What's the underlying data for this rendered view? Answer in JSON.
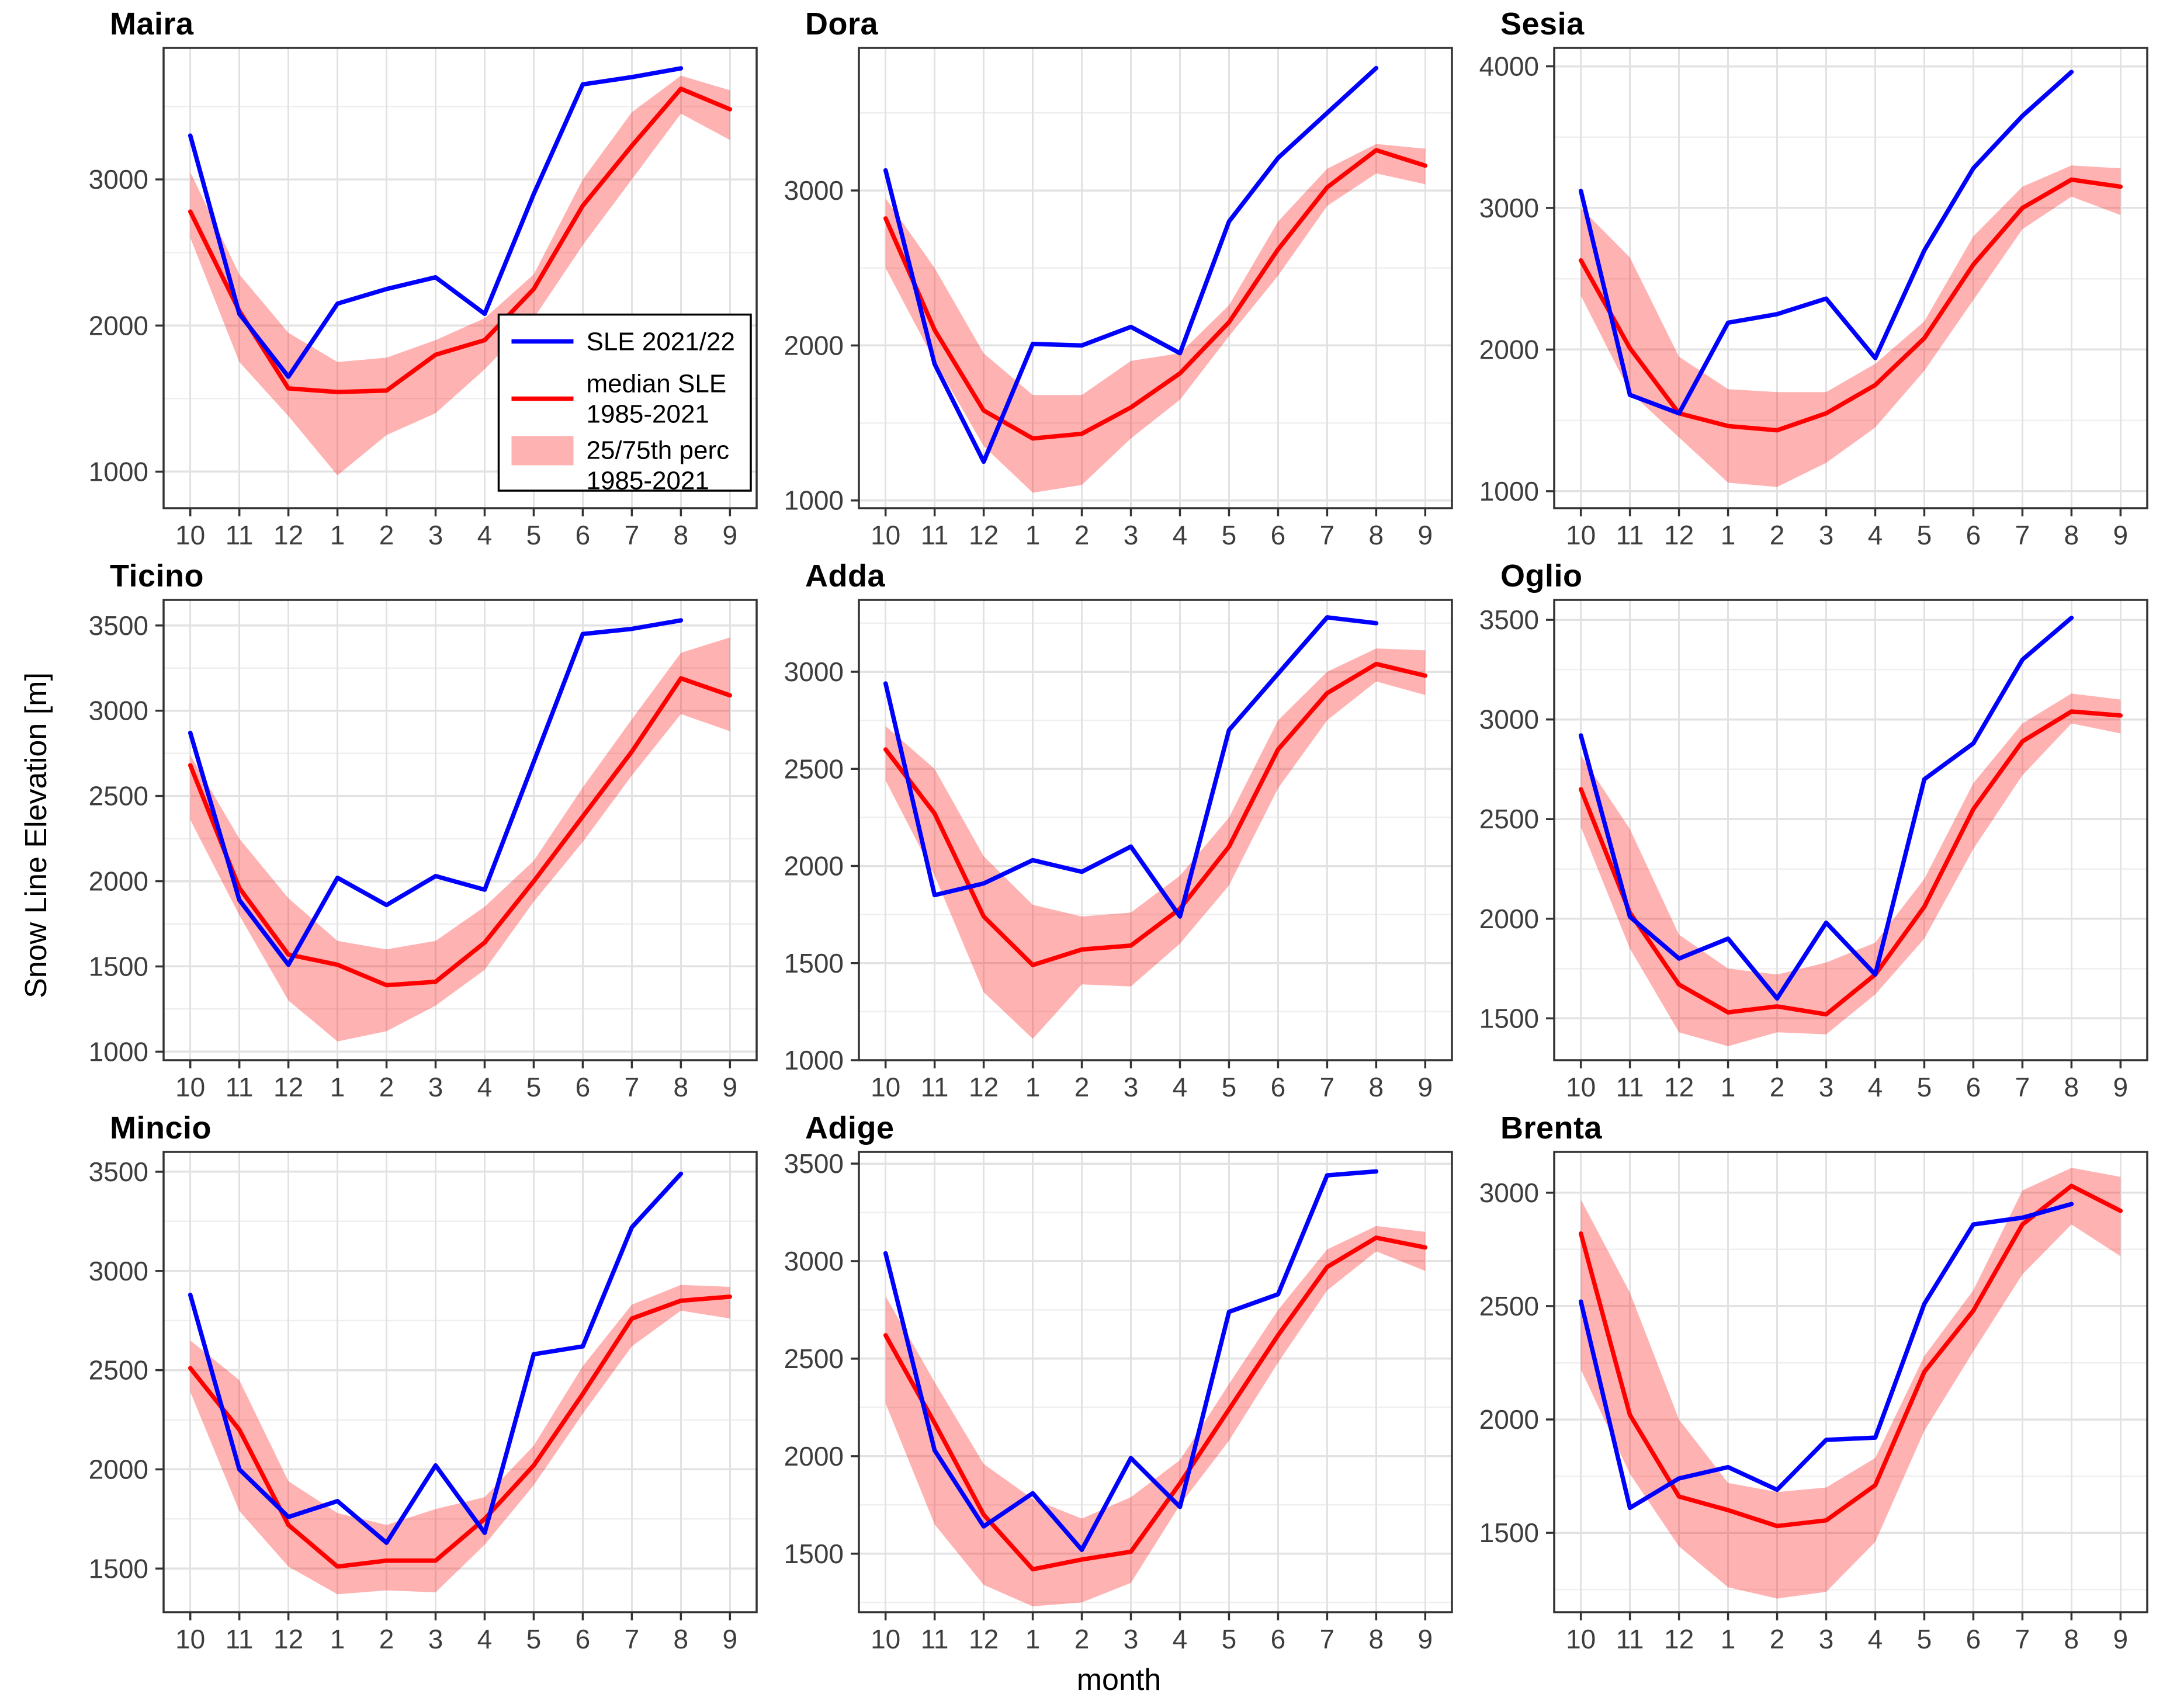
{
  "figure": {
    "y_axis_label": "Snow Line Elevation [m]",
    "x_axis_label": "month",
    "month_labels": [
      "10",
      "11",
      "12",
      "1",
      "2",
      "3",
      "4",
      "5",
      "6",
      "7",
      "8",
      "9"
    ]
  },
  "style": {
    "current_line_color": "#0000FF",
    "median_line_color": "#FF0000",
    "band_fill": "rgba(255,0,0,0.30)",
    "grid_major_color": "#E2E2E2",
    "grid_minor_color": "#EFEFEF",
    "panel_border_color": "#333333",
    "tick_mark_color": "#333333",
    "tick_label_color": "#3D3D3D",
    "background": "#FFFFFF"
  },
  "legend": {
    "location": "inside Maira panel, lower right",
    "entries": [
      {
        "key": "line",
        "color": "#0000FF",
        "label": "SLE 2021/22",
        "label_lines": [
          "SLE 2021/22"
        ]
      },
      {
        "key": "line",
        "color": "#FF0000",
        "label": "median SLE 1985-2021",
        "label_lines": [
          "median SLE",
          "1985-2021"
        ]
      },
      {
        "key": "band",
        "color": "rgba(255,0,0,0.30)",
        "label": "25/75th perc 1985-2021",
        "label_lines": [
          "25/75th perc",
          "1985-2021"
        ]
      }
    ]
  },
  "chart_data": [
    {
      "type": "line",
      "title": "Maira",
      "show_legend": true,
      "x": [
        10,
        11,
        12,
        1,
        2,
        3,
        4,
        5,
        6,
        7,
        8,
        9
      ],
      "ylim": [
        750,
        3900
      ],
      "yticks": [
        1000,
        2000,
        3000
      ],
      "series": [
        {
          "name": "SLE 2021/22",
          "color": "#0000FF",
          "values": [
            3300,
            2080,
            1650,
            2150,
            2250,
            2330,
            2080,
            2900,
            3650,
            3700,
            3760,
            null
          ]
        },
        {
          "name": "median SLE 1985-2021",
          "color": "#FF0000",
          "values": [
            2780,
            2100,
            1570,
            1545,
            1555,
            1800,
            1900,
            2250,
            2820,
            3230,
            3620,
            3480
          ]
        }
      ],
      "band": {
        "name": "25/75th perc 1985-2021",
        "lower": [
          2600,
          1750,
          1380,
          975,
          1250,
          1400,
          1700,
          2050,
          2550,
          3000,
          3450,
          3270
        ],
        "upper": [
          3050,
          2350,
          1950,
          1750,
          1780,
          1900,
          2050,
          2350,
          3000,
          3460,
          3710,
          3610
        ]
      }
    },
    {
      "type": "line",
      "title": "Dora",
      "show_legend": false,
      "x": [
        10,
        11,
        12,
        1,
        2,
        3,
        4,
        5,
        6,
        7,
        8,
        9
      ],
      "ylim": [
        950,
        3920
      ],
      "yticks": [
        1000,
        2000,
        3000
      ],
      "series": [
        {
          "name": "SLE 2021/22",
          "color": "#0000FF",
          "values": [
            3130,
            1880,
            1250,
            2010,
            2000,
            2120,
            1950,
            2800,
            3210,
            3500,
            3790,
            null
          ]
        },
        {
          "name": "median SLE 1985-2021",
          "color": "#FF0000",
          "values": [
            2820,
            2100,
            1580,
            1400,
            1430,
            1600,
            1820,
            2150,
            2620,
            3020,
            3260,
            3160
          ]
        }
      ],
      "band": {
        "name": "25/75th perc 1985-2021",
        "lower": [
          2500,
          1900,
          1350,
          1050,
          1100,
          1400,
          1650,
          2060,
          2450,
          2900,
          3110,
          3040
        ],
        "upper": [
          2950,
          2500,
          1950,
          1680,
          1680,
          1900,
          1950,
          2260,
          2800,
          3140,
          3300,
          3270
        ]
      }
    },
    {
      "type": "line",
      "title": "Sesia",
      "show_legend": false,
      "x": [
        10,
        11,
        12,
        1,
        2,
        3,
        4,
        5,
        6,
        7,
        8,
        9
      ],
      "ylim": [
        880,
        4130
      ],
      "yticks": [
        1000,
        2000,
        3000,
        4000
      ],
      "series": [
        {
          "name": "SLE 2021/22",
          "color": "#0000FF",
          "values": [
            3120,
            1680,
            1550,
            2190,
            2250,
            2360,
            1940,
            2700,
            3280,
            3650,
            3960,
            null
          ]
        },
        {
          "name": "median SLE 1985-2021",
          "color": "#FF0000",
          "values": [
            2630,
            2010,
            1550,
            1460,
            1430,
            1550,
            1750,
            2080,
            2600,
            3000,
            3200,
            3150
          ]
        }
      ],
      "band": {
        "name": "25/75th perc 1985-2021",
        "lower": [
          2380,
          1700,
          1380,
          1060,
          1030,
          1200,
          1450,
          1850,
          2350,
          2850,
          3080,
          2950
        ],
        "upper": [
          3000,
          2650,
          1950,
          1720,
          1700,
          1700,
          1900,
          2200,
          2800,
          3150,
          3300,
          3280
        ]
      }
    },
    {
      "type": "line",
      "title": "Ticino",
      "show_legend": false,
      "x": [
        10,
        11,
        12,
        1,
        2,
        3,
        4,
        5,
        6,
        7,
        8,
        9
      ],
      "ylim": [
        950,
        3650
      ],
      "yticks": [
        1000,
        1500,
        2000,
        2500,
        3000,
        3500
      ],
      "series": [
        {
          "name": "SLE 2021/22",
          "color": "#0000FF",
          "values": [
            2870,
            1890,
            1510,
            2020,
            1860,
            2030,
            1950,
            2700,
            3450,
            3480,
            3530,
            null
          ]
        },
        {
          "name": "median SLE 1985-2021",
          "color": "#FF0000",
          "values": [
            2680,
            1960,
            1570,
            1510,
            1390,
            1410,
            1640,
            2000,
            2380,
            2760,
            3190,
            3090
          ]
        }
      ],
      "band": {
        "name": "25/75th perc 1985-2021",
        "lower": [
          2360,
          1800,
          1300,
          1060,
          1120,
          1270,
          1480,
          1880,
          2230,
          2620,
          2980,
          2880
        ],
        "upper": [
          2740,
          2250,
          1900,
          1650,
          1600,
          1650,
          1850,
          2120,
          2550,
          2950,
          3340,
          3430
        ]
      }
    },
    {
      "type": "line",
      "title": "Adda",
      "show_legend": false,
      "x": [
        10,
        11,
        12,
        1,
        2,
        3,
        4,
        5,
        6,
        7,
        8,
        9
      ],
      "ylim": [
        1000,
        3370
      ],
      "yticks": [
        1000,
        1500,
        2000,
        2500,
        3000
      ],
      "series": [
        {
          "name": "SLE 2021/22",
          "color": "#0000FF",
          "values": [
            2940,
            1850,
            1910,
            2030,
            1970,
            2100,
            1740,
            2700,
            2990,
            3280,
            3250,
            null
          ]
        },
        {
          "name": "median SLE 1985-2021",
          "color": "#FF0000",
          "values": [
            2600,
            2270,
            1740,
            1490,
            1570,
            1590,
            1780,
            2100,
            2600,
            2890,
            3040,
            2980
          ]
        }
      ],
      "band": {
        "name": "25/75th perc 1985-2021",
        "lower": [
          2440,
          1950,
          1350,
          1110,
          1390,
          1380,
          1600,
          1900,
          2400,
          2750,
          2950,
          2880
        ],
        "upper": [
          2720,
          2500,
          2050,
          1800,
          1740,
          1760,
          1950,
          2250,
          2750,
          3000,
          3120,
          3110
        ]
      }
    },
    {
      "type": "line",
      "title": "Oglio",
      "show_legend": false,
      "x": [
        10,
        11,
        12,
        1,
        2,
        3,
        4,
        5,
        6,
        7,
        8,
        9
      ],
      "ylim": [
        1290,
        3600
      ],
      "yticks": [
        1500,
        2000,
        2500,
        3000,
        3500
      ],
      "series": [
        {
          "name": "SLE 2021/22",
          "color": "#0000FF",
          "values": [
            2920,
            2010,
            1800,
            1900,
            1600,
            1980,
            1720,
            2700,
            2880,
            3300,
            3510,
            null
          ]
        },
        {
          "name": "median SLE 1985-2021",
          "color": "#FF0000",
          "values": [
            2650,
            2030,
            1670,
            1530,
            1560,
            1520,
            1720,
            2060,
            2550,
            2890,
            3040,
            3020
          ]
        }
      ],
      "band": {
        "name": "25/75th perc 1985-2021",
        "lower": [
          2460,
          1850,
          1430,
          1360,
          1430,
          1420,
          1620,
          1900,
          2350,
          2720,
          2980,
          2930
        ],
        "upper": [
          2820,
          2450,
          1920,
          1750,
          1720,
          1780,
          1880,
          2200,
          2680,
          2980,
          3130,
          3100
        ]
      }
    },
    {
      "type": "line",
      "title": "Mincio",
      "show_legend": false,
      "x": [
        10,
        11,
        12,
        1,
        2,
        3,
        4,
        5,
        6,
        7,
        8,
        9
      ],
      "ylim": [
        1280,
        3600
      ],
      "yticks": [
        1500,
        2000,
        2500,
        3000,
        3500
      ],
      "series": [
        {
          "name": "SLE 2021/22",
          "color": "#0000FF",
          "values": [
            2880,
            2000,
            1760,
            1840,
            1630,
            2020,
            1680,
            2580,
            2620,
            3220,
            3490,
            null
          ]
        },
        {
          "name": "median SLE 1985-2021",
          "color": "#FF0000",
          "values": [
            2510,
            2200,
            1720,
            1510,
            1540,
            1540,
            1750,
            2020,
            2380,
            2760,
            2850,
            2870
          ]
        }
      ],
      "band": {
        "name": "25/75th perc 1985-2021",
        "lower": [
          2390,
          1790,
          1510,
          1370,
          1390,
          1380,
          1620,
          1920,
          2280,
          2620,
          2800,
          2760
        ],
        "upper": [
          2650,
          2450,
          1940,
          1780,
          1720,
          1800,
          1860,
          2120,
          2520,
          2830,
          2930,
          2920
        ]
      }
    },
    {
      "type": "line",
      "title": "Adige",
      "show_legend": false,
      "x": [
        10,
        11,
        12,
        1,
        2,
        3,
        4,
        5,
        6,
        7,
        8,
        9
      ],
      "ylim": [
        1200,
        3560
      ],
      "yticks": [
        1500,
        2000,
        2500,
        3000,
        3500
      ],
      "series": [
        {
          "name": "SLE 2021/22",
          "color": "#0000FF",
          "values": [
            3040,
            2030,
            1640,
            1810,
            1520,
            1990,
            1740,
            2740,
            2830,
            3440,
            3460,
            null
          ]
        },
        {
          "name": "median SLE 1985-2021",
          "color": "#FF0000",
          "values": [
            2620,
            2170,
            1700,
            1420,
            1470,
            1510,
            1860,
            2240,
            2620,
            2970,
            3120,
            3070
          ]
        }
      ],
      "band": {
        "name": "25/75th perc 1985-2021",
        "lower": [
          2270,
          1650,
          1340,
          1230,
          1250,
          1350,
          1750,
          2080,
          2480,
          2850,
          3050,
          2950
        ],
        "upper": [
          2820,
          2380,
          1960,
          1780,
          1680,
          1790,
          1980,
          2370,
          2750,
          3060,
          3180,
          3150
        ]
      }
    },
    {
      "type": "line",
      "title": "Brenta",
      "show_legend": false,
      "x": [
        10,
        11,
        12,
        1,
        2,
        3,
        4,
        5,
        6,
        7,
        8,
        9
      ],
      "ylim": [
        1150,
        3180
      ],
      "yticks": [
        1500,
        2000,
        2500,
        3000
      ],
      "series": [
        {
          "name": "SLE 2021/22",
          "color": "#0000FF",
          "values": [
            2520,
            1610,
            1740,
            1790,
            1690,
            1910,
            1920,
            2510,
            2860,
            2890,
            2950,
            null
          ]
        },
        {
          "name": "median SLE 1985-2021",
          "color": "#FF0000",
          "values": [
            2820,
            2020,
            1660,
            1600,
            1530,
            1555,
            1710,
            2210,
            2480,
            2860,
            3030,
            2920
          ]
        }
      ],
      "band": {
        "name": "25/75th perc 1985-2021",
        "lower": [
          2220,
          1760,
          1440,
          1260,
          1210,
          1240,
          1460,
          1950,
          2300,
          2640,
          2860,
          2720
        ],
        "upper": [
          2970,
          2560,
          2000,
          1720,
          1680,
          1700,
          1830,
          2280,
          2570,
          3010,
          3110,
          3070
        ]
      }
    }
  ]
}
